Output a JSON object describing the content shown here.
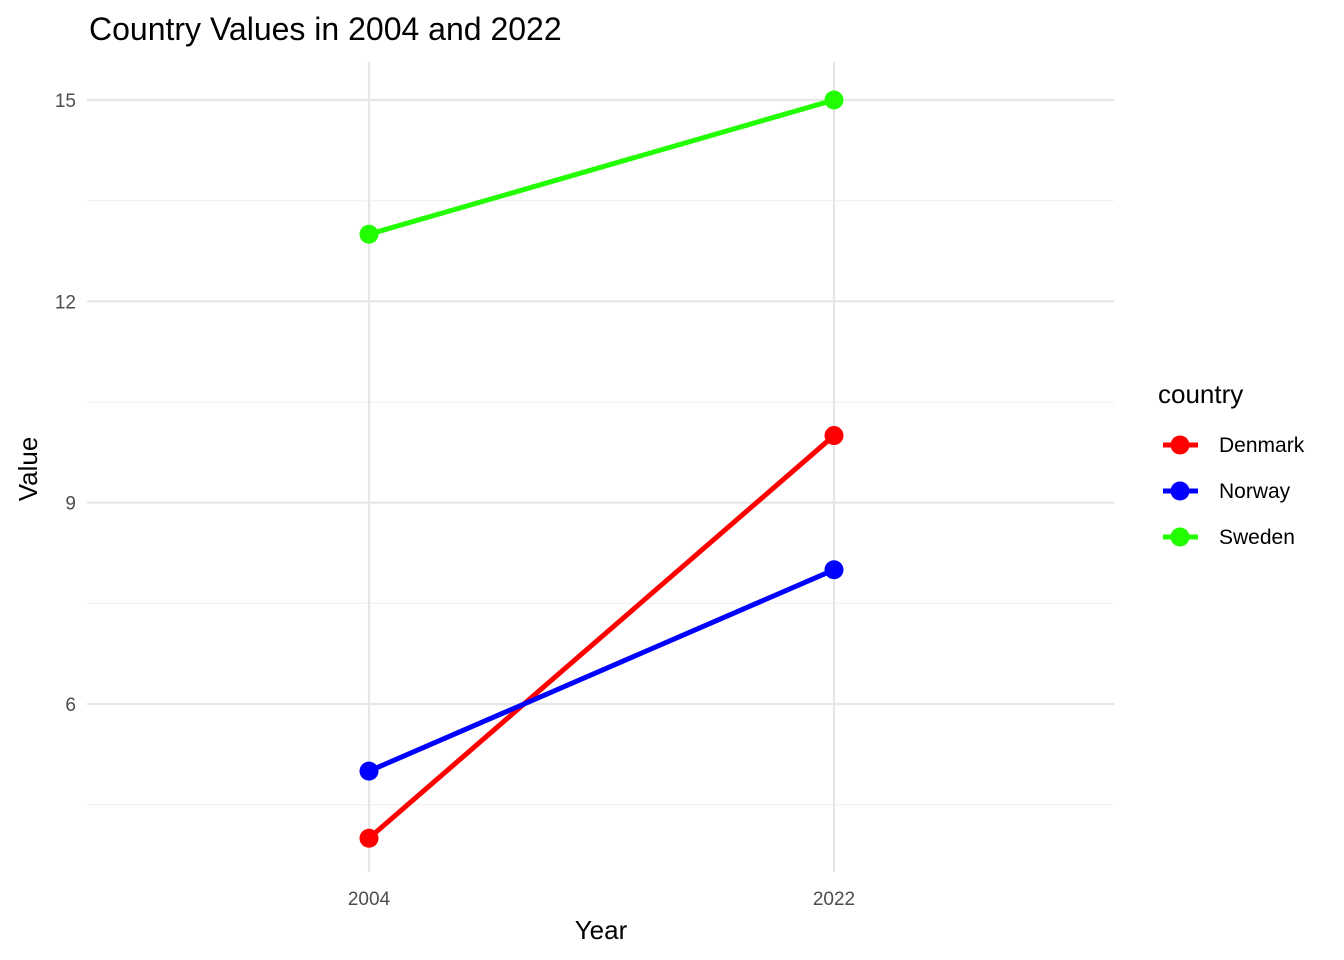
{
  "chart_data": {
    "type": "line",
    "title": "Country Values in 2004 and 2022",
    "xlabel": "Year",
    "ylabel": "Value",
    "categories": [
      "2004",
      "2022"
    ],
    "ylim": [
      4,
      15
    ],
    "yticks": [
      6,
      9,
      12,
      15
    ],
    "grid": true,
    "legend": {
      "title": "country",
      "position": "right"
    },
    "series": [
      {
        "name": "Denmark",
        "color": "#ff0000",
        "values": [
          4,
          10
        ]
      },
      {
        "name": "Norway",
        "color": "#0000ff",
        "values": [
          5,
          8
        ]
      },
      {
        "name": "Sweden",
        "color": "#22ff00",
        "values": [
          13,
          15
        ]
      }
    ]
  }
}
